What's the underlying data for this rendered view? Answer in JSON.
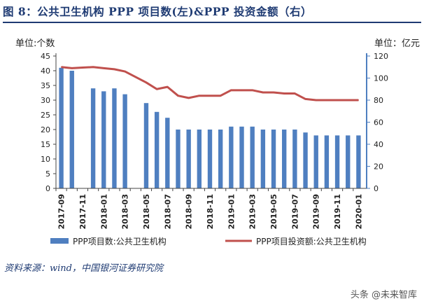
{
  "figure_title": "图 8：公共卫生机构 PPP 项目数(左)&PPP 投资金额（右）",
  "source_note": "资料来源：wind，中国银河证券研究院",
  "watermark": "头条 @未来智库",
  "colors": {
    "bars": "#4f7fc0",
    "line": "#c0504d",
    "right_axis": "#4f7fc0",
    "title": "#1f3b73"
  },
  "chart_data": {
    "type": "bar+line",
    "left_unit_label": "单位:个数",
    "right_unit_label": "单位：亿元",
    "left_axis": {
      "min": 0,
      "max": 45,
      "ticks": [
        0,
        5,
        10,
        15,
        20,
        25,
        30,
        35,
        40,
        45
      ]
    },
    "right_axis": {
      "min": 0,
      "max": 120,
      "ticks": [
        0,
        20,
        40,
        60,
        80,
        100,
        120
      ]
    },
    "x_tick_labels": [
      "2017-09",
      "2017-11",
      "2018-01",
      "2018-03",
      "2018-05",
      "2018-07",
      "2018-09",
      "2018-11",
      "2019-01",
      "2019-03",
      "2019-05",
      "2019-07",
      "2019-09",
      "2019-11",
      "2020-01"
    ],
    "categories": [
      "2017-09",
      "2017-10",
      "2017-11",
      "2017-12",
      "2018-01",
      "2018-02",
      "2018-03",
      "2018-04",
      "2018-05",
      "2018-06",
      "2018-07",
      "2018-08",
      "2018-09",
      "2018-10",
      "2018-11",
      "2018-12",
      "2019-01",
      "2019-02",
      "2019-03",
      "2019-04",
      "2019-05",
      "2019-06",
      "2019-07",
      "2019-08",
      "2019-09",
      "2019-10",
      "2019-11",
      "2019-12",
      "2020-01"
    ],
    "series": [
      {
        "name": "PPP项目数:公共卫生机构",
        "type": "bar",
        "axis": "left",
        "values": [
          41,
          40,
          null,
          34,
          33,
          34,
          32,
          null,
          29,
          26,
          24,
          20,
          20,
          20,
          20,
          20,
          21,
          21,
          21,
          20,
          20,
          20,
          20,
          19,
          18,
          18,
          18,
          18,
          18
        ]
      },
      {
        "name": "PPP项目投资额:公共卫生机构",
        "type": "line",
        "axis": "right",
        "values": [
          110,
          109,
          109.5,
          110,
          109,
          108,
          106,
          101,
          96,
          90,
          92,
          84,
          82,
          84,
          84,
          84,
          89,
          89,
          89,
          87,
          87,
          86,
          86,
          81,
          80,
          80,
          80,
          80,
          80
        ]
      }
    ],
    "grid": false,
    "legend_position": "bottom"
  }
}
